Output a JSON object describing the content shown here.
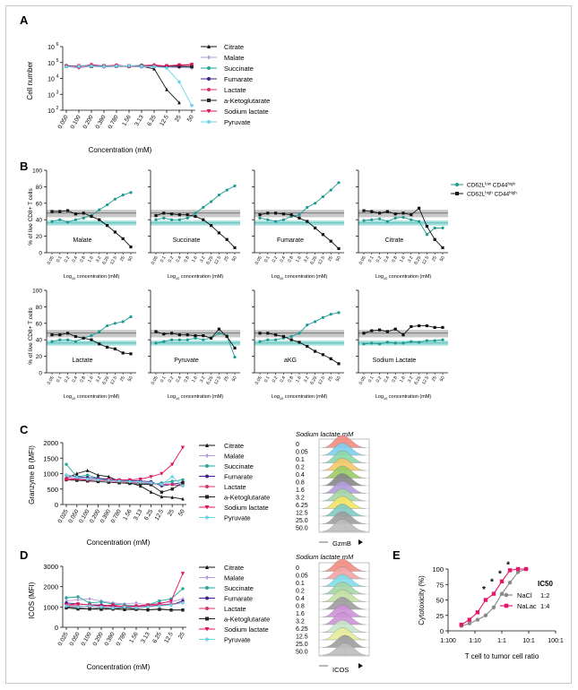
{
  "panel_letters": [
    "A",
    "B",
    "C",
    "D",
    "E"
  ],
  "colors": {
    "citrate": "#111111",
    "malate": "#b39ddb",
    "succinate": "#26a69a",
    "fumarate": "#3f1f8c",
    "lactate": "#d6336c",
    "akg": "#222222",
    "sodium_lactate": "#e0115f",
    "pyruvate": "#6fd3e8",
    "teal": "#1d9a93",
    "black": "#111111",
    "nacl": "#8a8a8a",
    "nalac": "#e4176b"
  },
  "panelA": {
    "ylabel": "Cell number",
    "xlabel": "Concentration (mM)",
    "yticks": [
      "10",
      "10",
      "10",
      "10",
      "10"
    ],
    "yexp": [
      "2",
      "3",
      "4",
      "5",
      "6"
    ],
    "xticks": [
      "0.050",
      "0.100",
      "0.200",
      "0.390",
      "0.780",
      "1.56",
      "3.13",
      "6.25",
      "12.5",
      "25",
      "50"
    ],
    "legend": [
      "Citrate",
      "Malate",
      "Succinate",
      "Fumarate",
      "Lactate",
      "a-Ketoglutarate",
      "Sodium lactate",
      "Pyruvate"
    ]
  },
  "panelB": {
    "ylabel": "% of live CD8+ T cells",
    "xlabel": "Log",
    "xlabel_sub": "10",
    "xlabel_rest": " concentration (mM)",
    "yticks": [
      "0",
      "20",
      "40",
      "60",
      "80",
      "100"
    ],
    "xticks": [
      "0.05",
      "0.1",
      "0.2",
      "0.4",
      "0.8",
      "1.6",
      "3.2",
      "6.25",
      "12.5",
      "25",
      "50"
    ],
    "legend": [
      {
        "pre": "CD62L",
        "sup1": "low",
        "mid": " CD44",
        "sup2": "high"
      },
      {
        "pre": "CD62L",
        "sup1": "high",
        "mid": " CD44",
        "sup2": "high"
      }
    ],
    "subplots": [
      "Malate",
      "Succinate",
      "Fumarate",
      "Citrate",
      "Lactate",
      "Pyruvate",
      "aKG",
      "Sodium Lactate"
    ]
  },
  "panelC": {
    "ylabel": "Granzyme B (MFI)",
    "xlabel": "Concentration (mM)",
    "yticks": [
      "0",
      "500",
      "1000",
      "1500",
      "2000"
    ],
    "xticks": [
      "0.025",
      "0.050",
      "0.100",
      "0.200",
      "0.390",
      "0.780",
      "1.56",
      "3.13",
      "6.25",
      "12.5",
      "25",
      "50"
    ],
    "legend": [
      "Citrate",
      "Malate",
      "Succinate",
      "Fumarate",
      "Lactate",
      "a-Ketoglutarate",
      "Sodium lactate",
      "Pyruvate"
    ],
    "hist_title": "Sodium lactate mM",
    "hist_labels": [
      "0",
      "0.05",
      "0.1",
      "0.2",
      "0.4",
      "0.8",
      "1.6",
      "3.2",
      "6.25",
      "12.5",
      "25.0",
      "50.0"
    ],
    "hist_axis": "GzmB"
  },
  "panelD": {
    "ylabel": "ICOS (MFI)",
    "xlabel": "Concentration (mM)",
    "yticks": [
      "0",
      "1000",
      "2000",
      "3000"
    ],
    "xticks": [
      "0.025",
      "0.050",
      "0.100",
      "0.200",
      "0.390",
      "0.780",
      "1.56",
      "3.13",
      "6.25",
      "12.5",
      "25"
    ],
    "legend": [
      "Citrate",
      "Malate",
      "Succinate",
      "Fumarate",
      "Lactate",
      "a-Ketoglutarate",
      "Sodium lactate",
      "Pyruvate"
    ],
    "hist_title": "Sodium lactate mM",
    "hist_labels": [
      "0",
      "0.05",
      "0.1",
      "0.2",
      "0.4",
      "0.8",
      "1.6",
      "3.2",
      "6.25",
      "12.5",
      "25.0",
      "50.0"
    ],
    "hist_axis": "ICOS"
  },
  "panelE": {
    "ylabel": "Cytotoxicity (%)",
    "xlabel": "T cell to tumor cell ratio",
    "yticks": [
      "0",
      "25",
      "50",
      "75",
      "100"
    ],
    "xticks": [
      "1:100",
      "1:10",
      "1:1",
      "10:1",
      "100:1"
    ],
    "ic50_title": "IC50",
    "legend": [
      {
        "name": "NaCl",
        "ic50": "1:2"
      },
      {
        "name": "NaLac",
        "ic50": "1:4"
      }
    ],
    "stars": [
      "*",
      "*",
      "*",
      "*"
    ]
  },
  "chart_data": [
    {
      "type": "line",
      "panel": "A",
      "x": [
        0.05,
        0.1,
        0.2,
        0.39,
        0.78,
        1.56,
        3.13,
        6.25,
        12.5,
        25,
        50
      ],
      "yscale": "log",
      "ylim": [
        100,
        1000000
      ],
      "series": [
        {
          "name": "Citrate",
          "values": [
            60000,
            55000,
            65000,
            58000,
            62000,
            60000,
            57000,
            40000,
            2000,
            300,
            null
          ]
        },
        {
          "name": "Malate",
          "values": [
            55000,
            45000,
            60000,
            50000,
            58000,
            56000,
            52000,
            55000,
            50000,
            48000,
            45000
          ]
        },
        {
          "name": "Succinate",
          "values": [
            65000,
            60000,
            70000,
            62000,
            65000,
            60000,
            68000,
            62000,
            58000,
            55000,
            52000
          ]
        },
        {
          "name": "Fumarate",
          "values": [
            60000,
            58000,
            62000,
            60000,
            59000,
            61000,
            60000,
            58000,
            57000,
            56000,
            55000
          ]
        },
        {
          "name": "Lactate",
          "values": [
            62000,
            50000,
            75000,
            60000,
            70000,
            55000,
            65000,
            72000,
            60000,
            65000,
            70000
          ]
        },
        {
          "name": "a-Ketoglutarate",
          "values": [
            58000,
            60000,
            57000,
            61000,
            59000,
            60000,
            62000,
            58000,
            60000,
            57000,
            55000
          ]
        },
        {
          "name": "Sodium lactate",
          "values": [
            60000,
            62000,
            58000,
            60000,
            63000,
            61000,
            59000,
            60000,
            62000,
            70000,
            75000
          ]
        },
        {
          "name": "Pyruvate",
          "values": [
            55000,
            58000,
            60000,
            57000,
            60000,
            62000,
            58000,
            55000,
            45000,
            6000,
            200
          ]
        }
      ]
    },
    {
      "type": "line",
      "panel": "B",
      "x": [
        0.05,
        0.1,
        0.2,
        0.4,
        0.8,
        1.6,
        3.2,
        6.25,
        12.5,
        25,
        50
      ],
      "ylim": [
        0,
        100
      ],
      "subplots": [
        {
          "title": "Malate",
          "teal": [
            38,
            40,
            37,
            40,
            42,
            45,
            52,
            58,
            65,
            70,
            73
          ],
          "black": [
            50,
            50,
            51,
            47,
            48,
            44,
            40,
            33,
            25,
            17,
            7
          ]
        },
        {
          "title": "Succinate",
          "teal": [
            40,
            42,
            40,
            40,
            42,
            48,
            55,
            62,
            70,
            76,
            81
          ],
          "black": [
            45,
            48,
            47,
            46,
            46,
            44,
            40,
            33,
            24,
            16,
            6
          ]
        },
        {
          "title": "Fumarate",
          "teal": [
            42,
            40,
            38,
            40,
            44,
            46,
            55,
            60,
            68,
            76,
            85
          ],
          "black": [
            46,
            48,
            48,
            47,
            46,
            42,
            38,
            30,
            22,
            14,
            5
          ]
        },
        {
          "title": "Citrate",
          "teal": [
            39,
            40,
            41,
            38,
            42,
            43,
            40,
            38,
            22,
            30,
            30
          ],
          "black": [
            51,
            50,
            48,
            50,
            47,
            48,
            46,
            54,
            32,
            16,
            6
          ]
        },
        {
          "title": "Lactate",
          "teal": [
            38,
            40,
            40,
            38,
            42,
            45,
            50,
            57,
            60,
            62,
            68
          ],
          "black": [
            46,
            46,
            48,
            44,
            42,
            40,
            35,
            31,
            29,
            24,
            23
          ]
        },
        {
          "title": "Pyruvate",
          "teal": [
            36,
            38,
            40,
            40,
            40,
            42,
            40,
            42,
            48,
            45,
            19
          ],
          "black": [
            50,
            47,
            48,
            46,
            46,
            45,
            45,
            42,
            53,
            44,
            30
          ]
        },
        {
          "title": "aKG",
          "teal": [
            38,
            40,
            40,
            42,
            44,
            48,
            58,
            62,
            67,
            71,
            73
          ],
          "black": [
            48,
            48,
            46,
            44,
            40,
            37,
            32,
            26,
            22,
            17,
            11
          ]
        },
        {
          "title": "Sodium Lactate",
          "teal": [
            35,
            36,
            35,
            37,
            36,
            36,
            38,
            37,
            39,
            39,
            40
          ],
          "black": [
            48,
            51,
            52,
            50,
            53,
            46,
            56,
            57,
            57,
            55,
            55
          ]
        }
      ]
    },
    {
      "type": "line",
      "panel": "C",
      "x": [
        0.025,
        0.05,
        0.1,
        0.2,
        0.39,
        0.78,
        1.56,
        3.13,
        6.25,
        12.5,
        25,
        50
      ],
      "ylim": [
        0,
        2000
      ],
      "series": [
        {
          "name": "Citrate",
          "values": [
            850,
            1000,
            1100,
            950,
            900,
            750,
            700,
            600,
            400,
            250,
            230,
            180
          ]
        },
        {
          "name": "Malate",
          "values": [
            900,
            850,
            800,
            820,
            780,
            760,
            740,
            700,
            680,
            650,
            700,
            620
          ]
        },
        {
          "name": "Succinate",
          "values": [
            1300,
            900,
            950,
            850,
            800,
            780,
            760,
            700,
            650,
            700,
            750,
            800
          ]
        },
        {
          "name": "Fumarate",
          "values": [
            950,
            900,
            870,
            850,
            820,
            800,
            780,
            760,
            740,
            600,
            650,
            720
          ]
        },
        {
          "name": "Lactate",
          "values": [
            850,
            820,
            800,
            780,
            760,
            740,
            720,
            700,
            680,
            660,
            640,
            600
          ]
        },
        {
          "name": "a-Ketoglutarate",
          "values": [
            800,
            780,
            760,
            740,
            720,
            700,
            680,
            660,
            640,
            400,
            500,
            700
          ]
        },
        {
          "name": "Sodium lactate",
          "values": [
            800,
            820,
            780,
            800,
            810,
            790,
            800,
            820,
            900,
            1000,
            1300,
            1850
          ]
        },
        {
          "name": "Pyruvate",
          "values": [
            950,
            880,
            820,
            800,
            780,
            760,
            740,
            720,
            700,
            650,
            900,
            600
          ]
        }
      ]
    },
    {
      "type": "line",
      "panel": "D",
      "x": [
        0.025,
        0.05,
        0.1,
        0.2,
        0.39,
        0.78,
        1.56,
        3.13,
        6.25,
        12.5,
        25
      ],
      "ylim": [
        0,
        3000
      ],
      "series": [
        {
          "name": "Citrate",
          "values": [
            1000,
            950,
            900,
            950,
            900,
            950,
            900,
            850,
            900,
            850,
            850
          ]
        },
        {
          "name": "Malate",
          "values": [
            1300,
            1350,
            1400,
            1300,
            1200,
            1150,
            1200,
            1100,
            1200,
            1250,
            1400
          ]
        },
        {
          "name": "Succinate",
          "values": [
            1450,
            1500,
            1200,
            1250,
            1150,
            1100,
            1050,
            1100,
            1300,
            1400,
            1900
          ]
        },
        {
          "name": "Fumarate",
          "values": [
            1200,
            1150,
            1100,
            1100,
            1050,
            1000,
            1050,
            1000,
            1100,
            1100,
            1300
          ]
        },
        {
          "name": "Lactate",
          "values": [
            1100,
            1050,
            1000,
            1050,
            1000,
            1050,
            1000,
            1050,
            1100,
            1150,
            1200
          ]
        },
        {
          "name": "a-Ketoglutarate",
          "values": [
            950,
            900,
            900,
            880,
            900,
            870,
            880,
            860,
            880,
            850,
            850
          ]
        },
        {
          "name": "Sodium lactate",
          "values": [
            1100,
            1150,
            1100,
            1050,
            1100,
            1000,
            1050,
            1100,
            1150,
            1300,
            2650
          ]
        },
        {
          "name": "Pyruvate",
          "values": [
            1050,
            1000,
            1050,
            1000,
            950,
            1000,
            950,
            1000,
            1050,
            1100,
            1200
          ]
        }
      ]
    },
    {
      "type": "line",
      "panel": "E",
      "x_ratio": [
        0.03125,
        0.0625,
        0.125,
        0.25,
        0.5,
        1,
        2,
        4,
        8
      ],
      "ylim": [
        0,
        100
      ],
      "series": [
        {
          "name": "NaCl",
          "values": [
            8,
            12,
            18,
            25,
            38,
            60,
            78,
            95,
            100
          ]
        },
        {
          "name": "NaLac",
          "values": [
            10,
            18,
            30,
            50,
            60,
            80,
            98,
            100,
            100
          ]
        }
      ]
    }
  ]
}
